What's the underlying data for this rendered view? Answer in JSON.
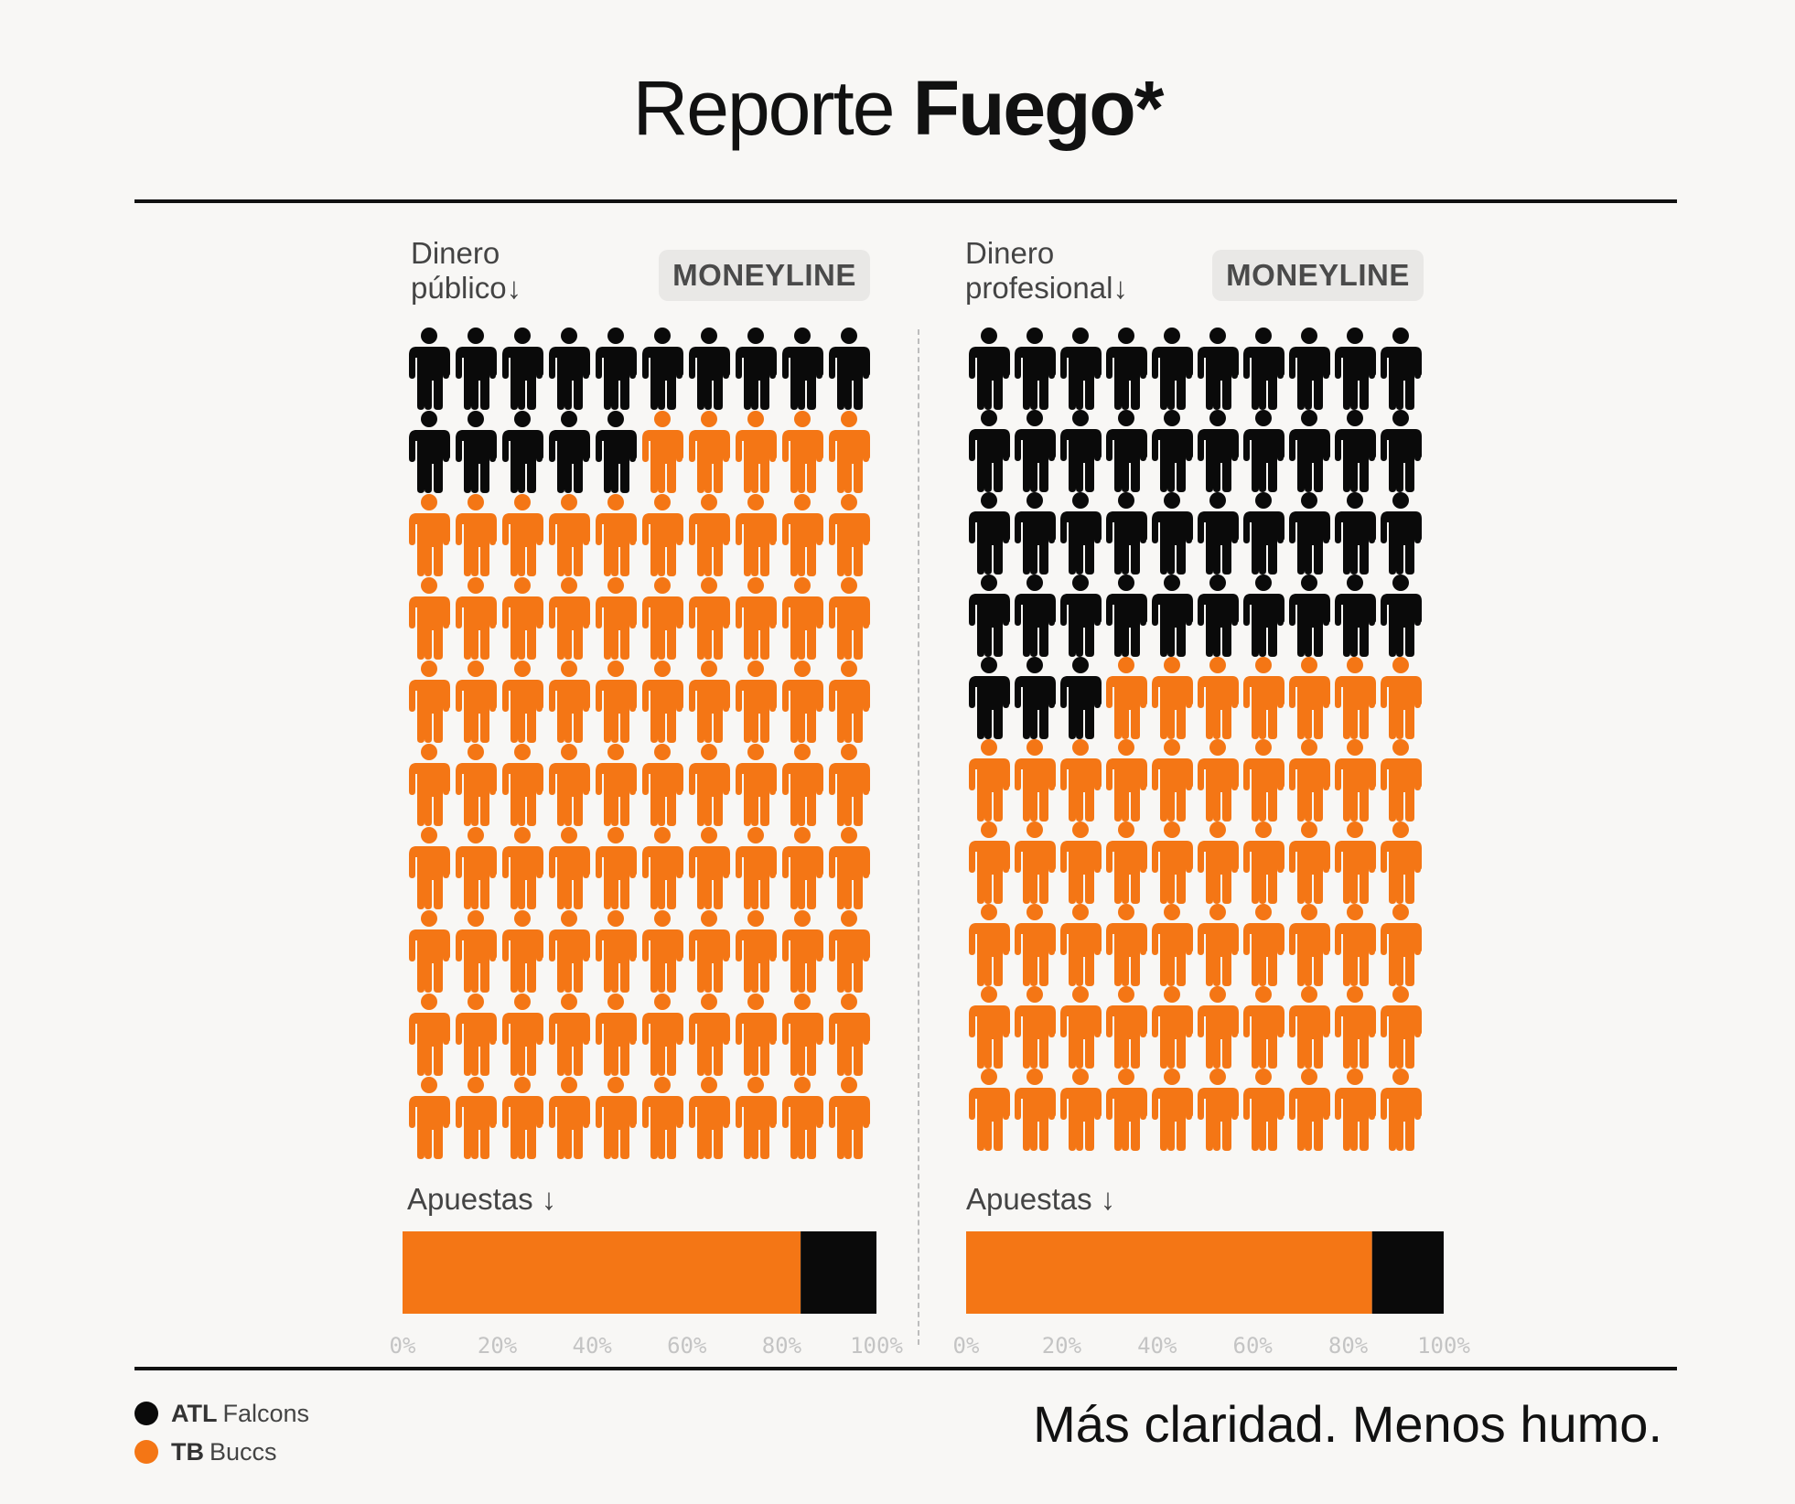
{
  "header": {
    "title_light": "Reporte",
    "title_bold": "Fuego*"
  },
  "colors": {
    "team_a": "#0a0a0a",
    "team_b": "#f47615"
  },
  "panels": [
    {
      "title_line1": "Dinero",
      "title_line2": "público",
      "arrow": "↓",
      "badge": "MONEYLINE",
      "bets_label": "Apuestas",
      "bets_arrow": "↓"
    },
    {
      "title_line1": "Dinero",
      "title_line2": "profesional",
      "arrow": "↓",
      "badge": "MONEYLINE",
      "bets_label": "Apuestas",
      "bets_arrow": "↓"
    }
  ],
  "legend": [
    {
      "abbr": "ATL",
      "name": "Falcons",
      "color": "#0a0a0a",
      "icon": "dot-icon"
    },
    {
      "abbr": "TB",
      "name": "Buccs",
      "color": "#f47615",
      "icon": "dot-icon"
    }
  ],
  "tagline": "Más claridad. Menos humo.",
  "chart_data": [
    {
      "type": "waffle",
      "title": "Dinero público",
      "badge": "MONEYLINE",
      "icon": "person-icon",
      "grid": {
        "rows": 10,
        "cols": 10
      },
      "series": [
        {
          "name": "ATL Falcons",
          "value": 15,
          "color": "#0a0a0a"
        },
        {
          "name": "TB Buccs",
          "value": 85,
          "color": "#f47615"
        }
      ]
    },
    {
      "type": "waffle",
      "title": "Dinero profesional",
      "badge": "MONEYLINE",
      "icon": "person-icon",
      "grid": {
        "rows": 10,
        "cols": 10
      },
      "series": [
        {
          "name": "ATL Falcons",
          "value": 43,
          "color": "#0a0a0a"
        },
        {
          "name": "TB Buccs",
          "value": 57,
          "color": "#f47615"
        }
      ]
    },
    {
      "type": "bar",
      "orientation": "horizontal-stacked",
      "ylabel": "Apuestas",
      "xlim": [
        0,
        100
      ],
      "ticks": [
        "0%",
        "20%",
        "40%",
        "60%",
        "80%",
        "100%"
      ],
      "series": [
        {
          "name": "TB Buccs",
          "value": 84,
          "color": "#f47615"
        },
        {
          "name": "ATL Falcons",
          "value": 16,
          "color": "#0a0a0a"
        }
      ]
    },
    {
      "type": "bar",
      "orientation": "horizontal-stacked",
      "ylabel": "Apuestas",
      "xlim": [
        0,
        100
      ],
      "ticks": [
        "0%",
        "20%",
        "40%",
        "60%",
        "80%",
        "100%"
      ],
      "series": [
        {
          "name": "TB Buccs",
          "value": 85,
          "color": "#f47615"
        },
        {
          "name": "ATL Falcons",
          "value": 15,
          "color": "#0a0a0a"
        }
      ]
    }
  ]
}
